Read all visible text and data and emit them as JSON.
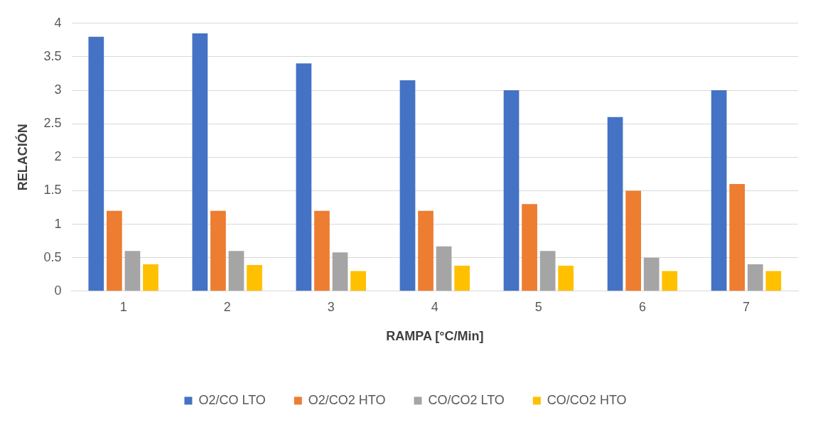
{
  "chart_data": {
    "type": "bar",
    "xlabel": "RAMPA [°C/Min]",
    "ylabel": "RELACIÓN",
    "categories": [
      "1",
      "2",
      "3",
      "4",
      "5",
      "6",
      "7"
    ],
    "series": [
      {
        "name": "O2/CO LTO",
        "color": "#4472c4",
        "values": [
          3.8,
          3.85,
          3.4,
          3.15,
          3.0,
          2.6,
          3.0
        ]
      },
      {
        "name": "O2/CO2 HTO",
        "color": "#ed7d31",
        "values": [
          1.2,
          1.2,
          1.2,
          1.2,
          1.3,
          1.5,
          1.6
        ]
      },
      {
        "name": "CO/CO2 LTO",
        "color": "#a5a5a5",
        "values": [
          0.6,
          0.6,
          0.58,
          0.67,
          0.6,
          0.5,
          0.4
        ]
      },
      {
        "name": "CO/CO2 HTO",
        "color": "#ffc000",
        "values": [
          0.4,
          0.39,
          0.3,
          0.38,
          0.38,
          0.3,
          0.3
        ]
      }
    ],
    "ylim": [
      0,
      4
    ],
    "yticks": [
      0,
      0.5,
      1,
      1.5,
      2,
      2.5,
      3,
      3.5,
      4
    ],
    "grid": "y",
    "legend": "bottom"
  }
}
